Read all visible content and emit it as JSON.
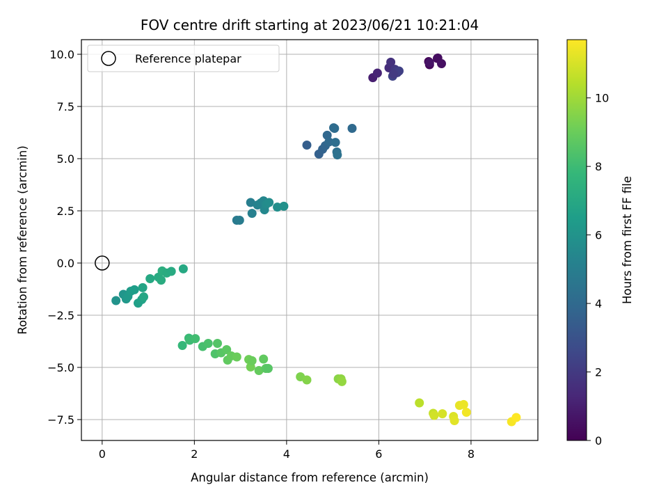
{
  "chart_data": {
    "type": "scatter",
    "title": "FOV centre drift starting at 2023/06/21 10:21:04",
    "xlabel": "Angular distance from reference (arcmin)",
    "ylabel": "Rotation from reference (arcmin)",
    "xlim": [
      -0.45,
      9.45
    ],
    "ylim": [
      -8.5,
      10.7
    ],
    "xticks": [
      0,
      2,
      4,
      6,
      8
    ],
    "yticks": [
      -7.5,
      -5.0,
      -2.5,
      0.0,
      2.5,
      5.0,
      7.5,
      10.0
    ],
    "ytick_labels": [
      "−7.5",
      "−5.0",
      "−2.5",
      "0.0",
      "2.5",
      "5.0",
      "7.5",
      "10.0"
    ],
    "grid": true,
    "legend": {
      "placement": "upper left",
      "entries": [
        {
          "label": "Reference platepar",
          "marker": "open-circle"
        }
      ]
    },
    "reference_point": {
      "x": 0,
      "y": 0
    },
    "colorbar": {
      "label": "Hours from first FF file",
      "range": [
        0,
        11.7
      ],
      "ticks": [
        0,
        2,
        4,
        6,
        8,
        10
      ],
      "colormap": "viridis",
      "colormap_stops": [
        "#440154",
        "#482878",
        "#3e4989",
        "#31688e",
        "#26828e",
        "#1f9e89",
        "#35b779",
        "#6ece58",
        "#b5de2b",
        "#fde725"
      ]
    },
    "series": [
      {
        "x": [
          7.08,
          7.1,
          7.27,
          7.28,
          7.36,
          7.1
        ],
        "y": [
          9.65,
          9.5,
          9.8,
          9.82,
          9.55,
          9.6
        ],
        "c": [
          0.1,
          0.2,
          0.3,
          0.4,
          0.5,
          0.6
        ]
      },
      {
        "x": [
          5.87,
          5.97,
          6.22,
          6.26,
          6.35,
          6.38,
          6.44,
          6.3,
          6.4,
          6.32
        ],
        "y": [
          8.88,
          9.1,
          9.35,
          9.62,
          9.28,
          9.18,
          9.2,
          8.95,
          9.12,
          9.05
        ],
        "c": [
          1.0,
          1.2,
          1.5,
          1.7,
          1.9,
          2.1,
          2.3,
          2.4,
          2.2,
          2.0
        ]
      },
      {
        "x": [
          4.44,
          4.7,
          4.78,
          4.84,
          4.88,
          4.92,
          5.04,
          5.06,
          5.09,
          5.1,
          5.42,
          5.02
        ],
        "y": [
          5.65,
          5.22,
          5.45,
          5.62,
          6.12,
          5.8,
          6.45,
          5.78,
          5.32,
          5.18,
          6.45,
          6.48
        ],
        "c": [
          3.5,
          3.6,
          3.7,
          3.8,
          3.9,
          4.0,
          4.1,
          4.2,
          4.3,
          4.4,
          4.0,
          4.1
        ]
      },
      {
        "x": [
          2.92,
          2.98,
          3.22,
          3.25,
          3.37,
          3.44,
          3.5,
          3.52,
          3.56,
          3.62,
          3.8,
          3.94
        ],
        "y": [
          2.05,
          2.05,
          2.9,
          2.38,
          2.78,
          2.88,
          2.98,
          2.55,
          2.82,
          2.9,
          2.68,
          2.72
        ],
        "c": [
          4.8,
          4.9,
          5.0,
          5.1,
          5.2,
          5.3,
          5.4,
          5.5,
          5.6,
          5.7,
          5.8,
          5.9
        ]
      },
      {
        "x": [
          0.3,
          0.46,
          0.52,
          0.56,
          0.62,
          0.7,
          0.78,
          0.86,
          0.88,
          0.9,
          1.04,
          1.22,
          1.28,
          1.3,
          1.4,
          1.5,
          1.76
        ],
        "y": [
          -1.8,
          -1.5,
          -1.72,
          -1.6,
          -1.35,
          -1.28,
          -1.92,
          -1.75,
          -1.18,
          -1.62,
          -0.75,
          -0.68,
          -0.82,
          -0.38,
          -0.48,
          -0.4,
          -0.28
        ],
        "c": [
          6.0,
          6.1,
          6.2,
          6.3,
          6.4,
          6.5,
          6.6,
          6.7,
          6.8,
          6.9,
          7.0,
          7.1,
          7.2,
          7.3,
          7.2,
          7.1,
          7.0
        ]
      },
      {
        "x": [
          1.74,
          1.88,
          1.9,
          2.02,
          2.18,
          2.3,
          2.45,
          2.5,
          2.58,
          2.7,
          2.72,
          2.8,
          2.92,
          3.18,
          3.22,
          3.25,
          3.4,
          3.5,
          3.55,
          3.6
        ],
        "y": [
          -3.95,
          -3.6,
          -3.7,
          -3.62,
          -4.0,
          -3.85,
          -4.35,
          -3.85,
          -4.3,
          -4.15,
          -4.65,
          -4.45,
          -4.5,
          -4.62,
          -4.98,
          -4.68,
          -5.15,
          -4.6,
          -5.05,
          -5.05
        ],
        "c": [
          7.8,
          7.9,
          8.0,
          8.1,
          8.2,
          8.3,
          8.4,
          8.5,
          8.6,
          8.7,
          8.8,
          8.9,
          9.0,
          9.1,
          9.2,
          9.0,
          8.9,
          8.8,
          8.7,
          8.6
        ]
      },
      {
        "x": [
          4.3,
          4.44,
          5.12,
          5.18,
          5.2
        ],
        "y": [
          -5.45,
          -5.6,
          -5.55,
          -5.55,
          -5.68
        ],
        "c": [
          9.4,
          9.5,
          9.6,
          9.7,
          9.8
        ]
      },
      {
        "x": [
          6.88,
          7.18,
          7.2,
          7.38,
          7.62,
          7.64,
          7.75,
          7.84,
          7.9,
          8.88,
          8.98
        ],
        "y": [
          -6.7,
          -7.2,
          -7.3,
          -7.22,
          -7.35,
          -7.55,
          -6.82,
          -6.78,
          -7.15,
          -7.6,
          -7.4
        ],
        "c": [
          10.5,
          10.7,
          10.9,
          11.0,
          11.1,
          11.2,
          11.3,
          11.4,
          11.5,
          11.6,
          11.7
        ]
      }
    ]
  }
}
